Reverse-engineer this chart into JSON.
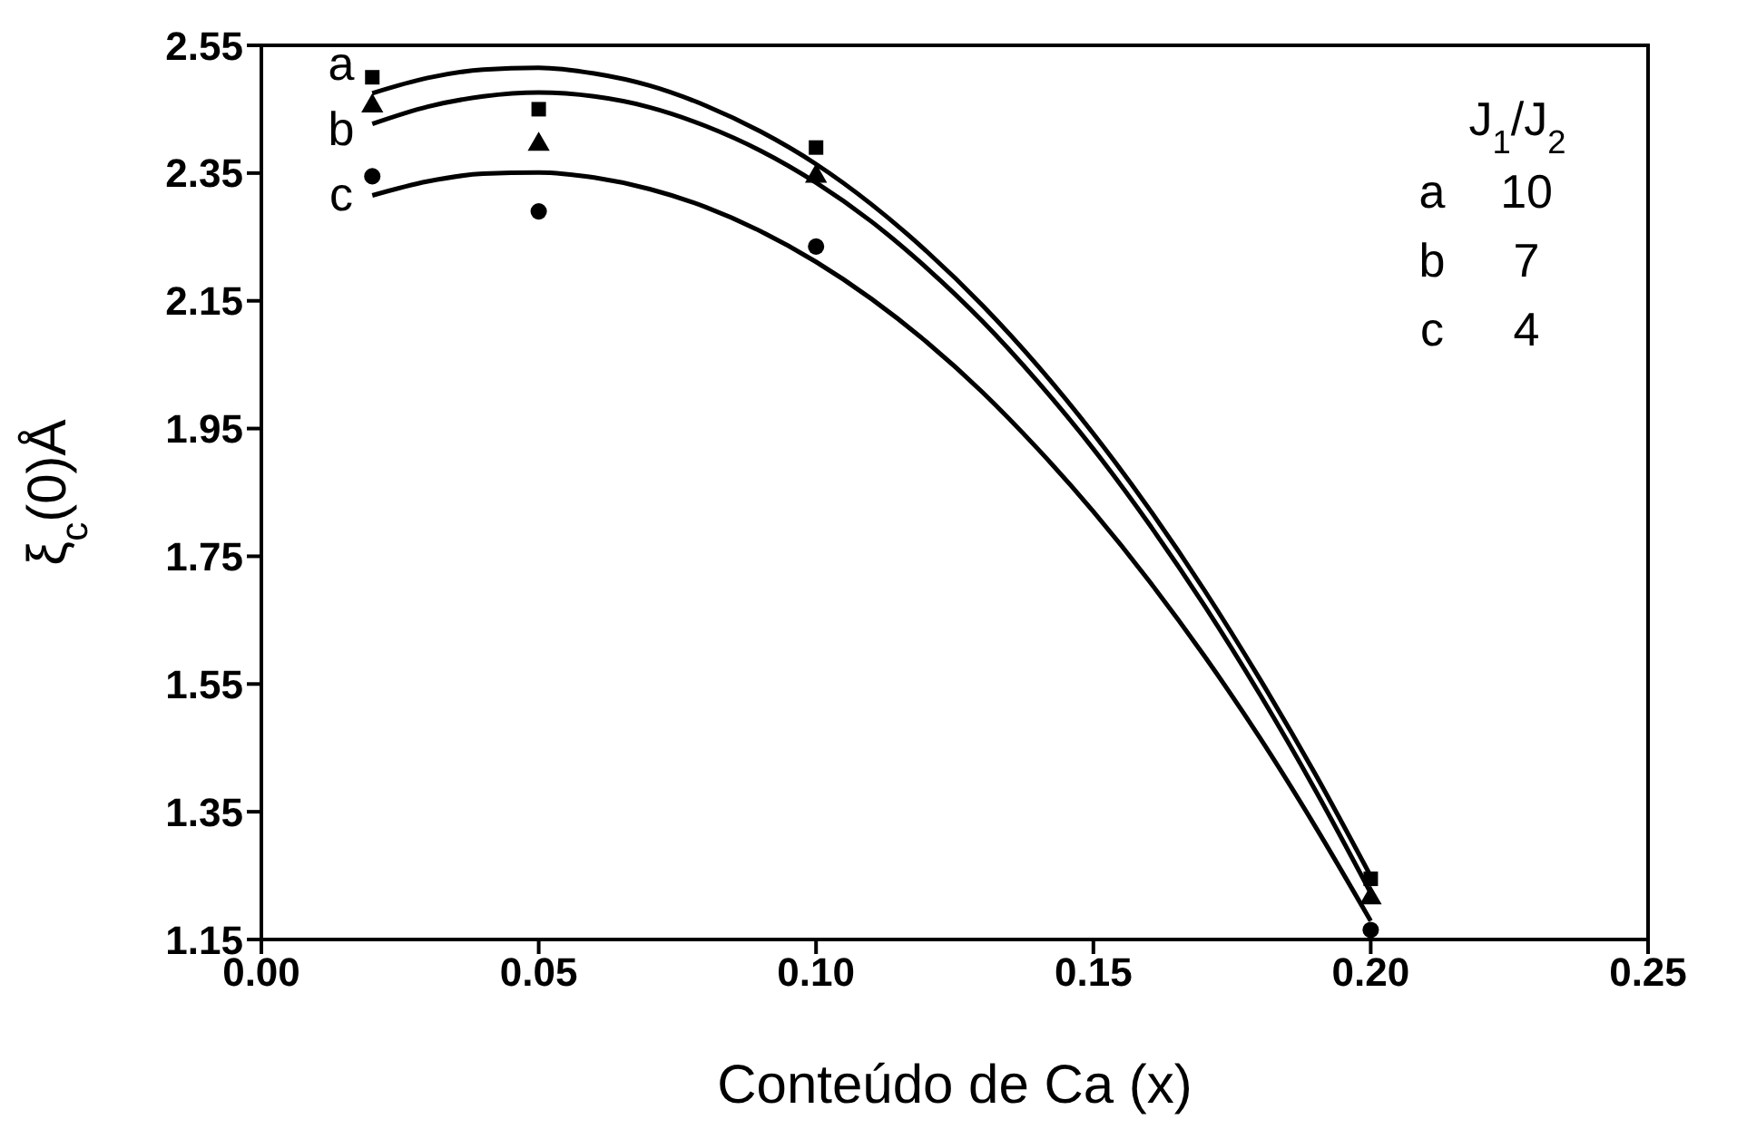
{
  "chart_data": {
    "type": "scatter",
    "xlabel": "Conteúdo de Ca (x)",
    "ylabel": "ξ$_{c}$(0)Å",
    "xlim": [
      0,
      0.25
    ],
    "xticks": [
      {
        "value": 0,
        "label": "0.00"
      },
      0.05,
      {
        "value": 0.1,
        "label": "0.10"
      },
      0.15,
      {
        "value": 0.2,
        "label": "0.20"
      },
      0.25
    ],
    "ylim": [
      1.15,
      2.55
    ],
    "yticks": [
      1.15,
      1.35,
      1.55,
      1.75,
      1.95,
      2.15,
      2.35,
      2.55
    ],
    "series": [
      {
        "marker": "square",
        "color": "#000000",
        "x": [
          0.02,
          0.05,
          0.1,
          0.2
        ],
        "values": [
          2.5,
          2.45,
          2.39,
          1.245
        ]
      },
      {
        "marker": "triangle",
        "color": "#000000",
        "x": [
          0.02,
          0.05,
          0.1,
          0.2
        ],
        "values": [
          2.455,
          2.395,
          2.345,
          1.215
        ]
      },
      {
        "marker": "circle",
        "color": "#000000",
        "x": [
          0.02,
          0.05,
          0.1,
          0.2
        ],
        "values": [
          2.345,
          2.29,
          2.235,
          1.165
        ]
      },
      {
        "type": "line",
        "marker": "none",
        "color": "#000000",
        "x": [
          0.02,
          0.03,
          0.04,
          0.05,
          0.06,
          0.07,
          0.08,
          0.09,
          0.1,
          0.11,
          0.12,
          0.13,
          0.14,
          0.15,
          0.16,
          0.17,
          0.18,
          0.19,
          0.2
        ],
        "values": [
          2.475,
          2.499,
          2.512,
          2.515,
          2.506,
          2.487,
          2.456,
          2.415,
          2.364,
          2.301,
          2.227,
          2.143,
          2.048,
          1.942,
          1.825,
          1.697,
          1.558,
          1.409,
          1.249
        ]
      },
      {
        "type": "line",
        "marker": "none",
        "color": "#000000",
        "x": [
          0.02,
          0.03,
          0.04,
          0.05,
          0.06,
          0.07,
          0.08,
          0.09,
          0.1,
          0.11,
          0.12,
          0.13,
          0.14,
          0.15,
          0.16,
          0.17,
          0.18,
          0.19,
          0.2
        ],
        "values": [
          2.427,
          2.454,
          2.47,
          2.476,
          2.47,
          2.453,
          2.424,
          2.385,
          2.335,
          2.274,
          2.201,
          2.118,
          2.023,
          1.918,
          1.801,
          1.673,
          1.534,
          1.384,
          1.223
        ]
      },
      {
        "type": "line",
        "marker": "none",
        "color": "#000000",
        "x": [
          0.02,
          0.03,
          0.04,
          0.05,
          0.06,
          0.07,
          0.08,
          0.09,
          0.1,
          0.11,
          0.12,
          0.13,
          0.14,
          0.15,
          0.16,
          0.17,
          0.18,
          0.19,
          0.2
        ],
        "values": [
          2.315,
          2.337,
          2.349,
          2.351,
          2.343,
          2.325,
          2.297,
          2.259,
          2.211,
          2.153,
          2.085,
          2.007,
          1.918,
          1.82,
          1.712,
          1.594,
          1.466,
          1.327,
          1.179
        ]
      }
    ],
    "annotations": [
      "a",
      "b",
      "c",
      "J$_{1}$/J$_{2}$",
      "a",
      "10",
      "b",
      "7",
      "c",
      "4"
    ]
  }
}
